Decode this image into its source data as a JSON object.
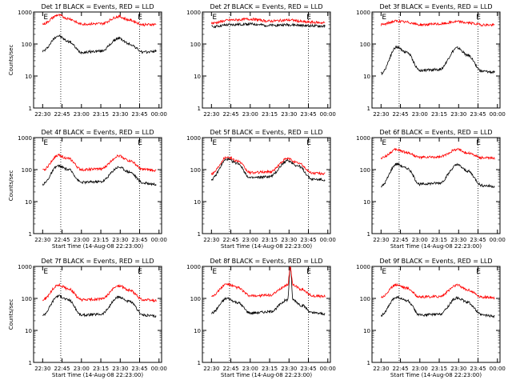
{
  "chart_data": [
    {
      "type": "line",
      "title": "Det 1f BLACK = Events, RED = LLD",
      "xlabel": "",
      "ylabel": "Counts/sec",
      "yscale": "log",
      "ylim": [
        1,
        1000
      ],
      "y_ticks": [
        "1",
        "10",
        "100",
        "1000"
      ],
      "x_ticks": [
        "22:30",
        "22:45",
        "23:00",
        "23:15",
        "23:30",
        "23:45",
        "00:00"
      ],
      "vlines": [
        "22:44",
        "23:45"
      ],
      "markers": [
        {
          "at": "22:30",
          "label": "E"
        },
        {
          "at": "23:43",
          "label": "E"
        }
      ],
      "series": [
        {
          "color": "#000000",
          "points": [
            [
              "22:30",
              60
            ],
            [
              "22:42",
              180
            ],
            [
              "22:50",
              120
            ],
            [
              "23:00",
              55
            ],
            [
              "23:15",
              60
            ],
            [
              "23:29",
              150
            ],
            [
              "23:37",
              100
            ],
            [
              "23:48",
              55
            ],
            [
              "23:58",
              60
            ]
          ]
        },
        {
          "color": "#ff0000",
          "points": [
            [
              "22:30",
              420
            ],
            [
              "22:42",
              800
            ],
            [
              "22:50",
              620
            ],
            [
              "23:00",
              420
            ],
            [
              "23:15",
              430
            ],
            [
              "23:29",
              720
            ],
            [
              "23:37",
              560
            ],
            [
              "23:48",
              400
            ],
            [
              "23:58",
              410
            ]
          ]
        }
      ]
    },
    {
      "type": "line",
      "title": "Det 2f BLACK = Events, RED = LLD",
      "xlabel": "",
      "ylabel": "",
      "yscale": "log",
      "ylim": [
        1,
        1000
      ],
      "y_ticks": [
        "1",
        "10",
        "100",
        "1000"
      ],
      "x_ticks": [
        "22:30",
        "22:45",
        "23:00",
        "23:15",
        "23:30",
        "23:45",
        "00:00"
      ],
      "vlines": [
        "22:44",
        "23:45"
      ],
      "markers": [
        {
          "at": "22:30",
          "label": "E"
        },
        {
          "at": "23:43",
          "label": "E"
        }
      ],
      "series": [
        {
          "color": "#000000",
          "points": [
            [
              "22:30",
              350
            ],
            [
              "22:45",
              400
            ],
            [
              "23:00",
              420
            ],
            [
              "23:15",
              380
            ],
            [
              "23:30",
              400
            ],
            [
              "23:45",
              370
            ],
            [
              "23:58",
              360
            ]
          ]
        },
        {
          "color": "#ff0000",
          "points": [
            [
              "22:30",
              450
            ],
            [
              "22:45",
              560
            ],
            [
              "23:00",
              600
            ],
            [
              "23:15",
              520
            ],
            [
              "23:30",
              560
            ],
            [
              "23:45",
              480
            ],
            [
              "23:58",
              460
            ]
          ]
        }
      ]
    },
    {
      "type": "line",
      "title": "Det 3f BLACK = Events, RED = LLD",
      "xlabel": "",
      "ylabel": "",
      "yscale": "log",
      "ylim": [
        1,
        1000
      ],
      "y_ticks": [
        "1",
        "10",
        "100",
        "1000"
      ],
      "x_ticks": [
        "22:30",
        "22:45",
        "23:00",
        "23:15",
        "23:30",
        "23:45",
        "00:00"
      ],
      "vlines": [
        "22:44",
        "23:45"
      ],
      "markers": [
        {
          "at": "22:30",
          "label": "E"
        },
        {
          "at": "23:43",
          "label": "E"
        }
      ],
      "series": [
        {
          "color": "#000000",
          "points": [
            [
              "22:30",
              12
            ],
            [
              "22:42",
              80
            ],
            [
              "22:50",
              55
            ],
            [
              "23:00",
              15
            ],
            [
              "23:15",
              16
            ],
            [
              "23:29",
              75
            ],
            [
              "23:37",
              45
            ],
            [
              "23:48",
              14
            ],
            [
              "23:58",
              13
            ]
          ]
        },
        {
          "color": "#ff0000",
          "points": [
            [
              "22:30",
              400
            ],
            [
              "22:42",
              520
            ],
            [
              "22:50",
              480
            ],
            [
              "23:00",
              400
            ],
            [
              "23:15",
              420
            ],
            [
              "23:29",
              500
            ],
            [
              "23:37",
              460
            ],
            [
              "23:48",
              400
            ],
            [
              "23:58",
              390
            ]
          ]
        }
      ]
    },
    {
      "type": "line",
      "title": "Det 4f BLACK = Events, RED = LLD",
      "xlabel": "Start Time (14-Aug-08 22:23:00)",
      "ylabel": "Counts/sec",
      "yscale": "log",
      "ylim": [
        1,
        1000
      ],
      "y_ticks": [
        "1",
        "10",
        "100",
        "1000"
      ],
      "x_ticks": [
        "22:30",
        "22:45",
        "23:00",
        "23:15",
        "23:30",
        "23:45",
        "00:00"
      ],
      "vlines": [
        "22:44",
        "23:45"
      ],
      "markers": [
        {
          "at": "22:30",
          "label": "E"
        },
        {
          "at": "23:43",
          "label": "E"
        }
      ],
      "series": [
        {
          "color": "#000000",
          "points": [
            [
              "22:30",
              35
            ],
            [
              "22:42",
              130
            ],
            [
              "22:50",
              100
            ],
            [
              "23:00",
              40
            ],
            [
              "23:15",
              42
            ],
            [
              "23:29",
              120
            ],
            [
              "23:37",
              85
            ],
            [
              "23:48",
              38
            ],
            [
              "23:58",
              35
            ]
          ]
        },
        {
          "color": "#ff0000",
          "points": [
            [
              "22:30",
              95
            ],
            [
              "22:42",
              280
            ],
            [
              "22:50",
              220
            ],
            [
              "23:00",
              100
            ],
            [
              "23:15",
              105
            ],
            [
              "23:29",
              270
            ],
            [
              "23:37",
              190
            ],
            [
              "23:48",
              100
            ],
            [
              "23:58",
              95
            ]
          ]
        }
      ]
    },
    {
      "type": "line",
      "title": "Det 5f BLACK = Events, RED = LLD",
      "xlabel": "Start Time (14-Aug-08 22:23:00)",
      "ylabel": "",
      "yscale": "log",
      "ylim": [
        1,
        1000
      ],
      "y_ticks": [
        "1",
        "10",
        "100",
        "1000"
      ],
      "x_ticks": [
        "22:30",
        "22:45",
        "23:00",
        "23:15",
        "23:30",
        "23:45",
        "00:00"
      ],
      "vlines": [
        "22:44",
        "23:45"
      ],
      "markers": [
        {
          "at": "22:30",
          "label": "E"
        },
        {
          "at": "23:43",
          "label": "E"
        }
      ],
      "series": [
        {
          "color": "#000000",
          "points": [
            [
              "22:30",
              50
            ],
            [
              "22:42",
              210
            ],
            [
              "22:50",
              160
            ],
            [
              "23:00",
              55
            ],
            [
              "23:15",
              60
            ],
            [
              "23:29",
              190
            ],
            [
              "23:37",
              130
            ],
            [
              "23:48",
              50
            ],
            [
              "23:58",
              48
            ]
          ]
        },
        {
          "color": "#ff0000",
          "points": [
            [
              "22:30",
              75
            ],
            [
              "22:42",
              250
            ],
            [
              "22:50",
              190
            ],
            [
              "23:00",
              80
            ],
            [
              "23:15",
              85
            ],
            [
              "23:29",
              220
            ],
            [
              "23:37",
              160
            ],
            [
              "23:48",
              78
            ],
            [
              "23:58",
              75
            ]
          ]
        }
      ]
    },
    {
      "type": "line",
      "title": "Det 6f BLACK = Events, RED = LLD",
      "xlabel": "Start Time (14-Aug-08 22:23:00)",
      "ylabel": "",
      "yscale": "log",
      "ylim": [
        1,
        1000
      ],
      "y_ticks": [
        "1",
        "10",
        "100",
        "1000"
      ],
      "x_ticks": [
        "22:30",
        "22:45",
        "23:00",
        "23:15",
        "23:30",
        "23:45",
        "00:00"
      ],
      "vlines": [
        "22:44",
        "23:45"
      ],
      "markers": [
        {
          "at": "22:30",
          "label": "E"
        },
        {
          "at": "23:43",
          "label": "E"
        }
      ],
      "series": [
        {
          "color": "#000000",
          "points": [
            [
              "22:30",
              30
            ],
            [
              "22:42",
              150
            ],
            [
              "22:50",
              110
            ],
            [
              "23:00",
              35
            ],
            [
              "23:15",
              38
            ],
            [
              "23:29",
              140
            ],
            [
              "23:37",
              90
            ],
            [
              "23:48",
              32
            ],
            [
              "23:58",
              30
            ]
          ]
        },
        {
          "color": "#ff0000",
          "points": [
            [
              "22:30",
              230
            ],
            [
              "22:42",
              420
            ],
            [
              "22:50",
              340
            ],
            [
              "23:00",
              240
            ],
            [
              "23:15",
              245
            ],
            [
              "23:29",
              430
            ],
            [
              "23:37",
              330
            ],
            [
              "23:48",
              235
            ],
            [
              "23:58",
              225
            ]
          ]
        }
      ]
    },
    {
      "type": "line",
      "title": "Det 7f BLACK = Events, RED = LLD",
      "xlabel": "Start Time (14-Aug-08 22:23:00)",
      "ylabel": "Counts/sec",
      "yscale": "log",
      "ylim": [
        1,
        1000
      ],
      "y_ticks": [
        "1",
        "10",
        "100",
        "1000"
      ],
      "x_ticks": [
        "22:30",
        "22:45",
        "23:00",
        "23:15",
        "23:30",
        "23:45",
        "00:00"
      ],
      "vlines": [
        "22:44",
        "23:45"
      ],
      "markers": [
        {
          "at": "22:30",
          "label": "E"
        },
        {
          "at": "23:43",
          "label": "E"
        }
      ],
      "series": [
        {
          "color": "#000000",
          "points": [
            [
              "22:30",
              30
            ],
            [
              "22:42",
              120
            ],
            [
              "22:50",
              90
            ],
            [
              "23:00",
              30
            ],
            [
              "23:15",
              32
            ],
            [
              "23:29",
              110
            ],
            [
              "23:37",
              80
            ],
            [
              "23:48",
              30
            ],
            [
              "23:58",
              28
            ]
          ]
        },
        {
          "color": "#ff0000",
          "points": [
            [
              "22:30",
              90
            ],
            [
              "22:42",
              260
            ],
            [
              "22:50",
              200
            ],
            [
              "23:00",
              90
            ],
            [
              "23:15",
              95
            ],
            [
              "23:29",
              250
            ],
            [
              "23:37",
              180
            ],
            [
              "23:48",
              90
            ],
            [
              "23:58",
              85
            ]
          ]
        }
      ]
    },
    {
      "type": "line",
      "title": "Det 8f BLACK = Events, RED = LLD",
      "xlabel": "Start Time (14-Aug-08 22:23:00)",
      "ylabel": "",
      "yscale": "log",
      "ylim": [
        1,
        1000
      ],
      "y_ticks": [
        "1",
        "10",
        "100",
        "1000"
      ],
      "x_ticks": [
        "22:30",
        "22:45",
        "23:00",
        "23:15",
        "23:30",
        "23:45",
        "00:00"
      ],
      "vlines": [
        "22:44",
        "23:45"
      ],
      "markers": [
        {
          "at": "22:30",
          "label": "E"
        },
        {
          "at": "23:43",
          "label": "E"
        }
      ],
      "series": [
        {
          "color": "#000000",
          "points": [
            [
              "22:30",
              35
            ],
            [
              "22:42",
              100
            ],
            [
              "22:50",
              75
            ],
            [
              "23:00",
              35
            ],
            [
              "23:15",
              38
            ],
            [
              "23:29",
              90
            ],
            [
              "23:31",
              1000
            ],
            [
              "23:33",
              90
            ],
            [
              "23:40",
              60
            ],
            [
              "23:48",
              35
            ],
            [
              "23:58",
              33
            ]
          ]
        },
        {
          "color": "#ff0000",
          "points": [
            [
              "22:30",
              120
            ],
            [
              "22:42",
              280
            ],
            [
              "22:50",
              220
            ],
            [
              "23:00",
              120
            ],
            [
              "23:15",
              125
            ],
            [
              "23:29",
              260
            ],
            [
              "23:31",
              1000
            ],
            [
              "23:33",
              260
            ],
            [
              "23:40",
              190
            ],
            [
              "23:48",
              120
            ],
            [
              "23:58",
              115
            ]
          ]
        }
      ]
    },
    {
      "type": "line",
      "title": "Det 9f BLACK = Events, RED = LLD",
      "xlabel": "Start Time (14-Aug-08 22:23:00)",
      "ylabel": "",
      "yscale": "log",
      "ylim": [
        1,
        1000
      ],
      "y_ticks": [
        "1",
        "10",
        "100",
        "1000"
      ],
      "x_ticks": [
        "22:30",
        "22:45",
        "23:00",
        "23:15",
        "23:30",
        "23:45",
        "00:00"
      ],
      "vlines": [
        "22:44",
        "23:45"
      ],
      "markers": [
        {
          "at": "22:30",
          "label": "E"
        },
        {
          "at": "23:43",
          "label": "E"
        }
      ],
      "series": [
        {
          "color": "#000000",
          "points": [
            [
              "22:30",
              30
            ],
            [
              "22:42",
              110
            ],
            [
              "22:50",
              85
            ],
            [
              "23:00",
              30
            ],
            [
              "23:15",
              32
            ],
            [
              "23:29",
              105
            ],
            [
              "23:37",
              75
            ],
            [
              "23:48",
              30
            ],
            [
              "23:58",
              28
            ]
          ]
        },
        {
          "color": "#ff0000",
          "points": [
            [
              "22:30",
              110
            ],
            [
              "22:42",
              270
            ],
            [
              "22:50",
              210
            ],
            [
              "23:00",
              110
            ],
            [
              "23:15",
              115
            ],
            [
              "23:29",
              260
            ],
            [
              "23:37",
              185
            ],
            [
              "23:48",
              110
            ],
            [
              "23:58",
              105
            ]
          ]
        }
      ]
    }
  ]
}
